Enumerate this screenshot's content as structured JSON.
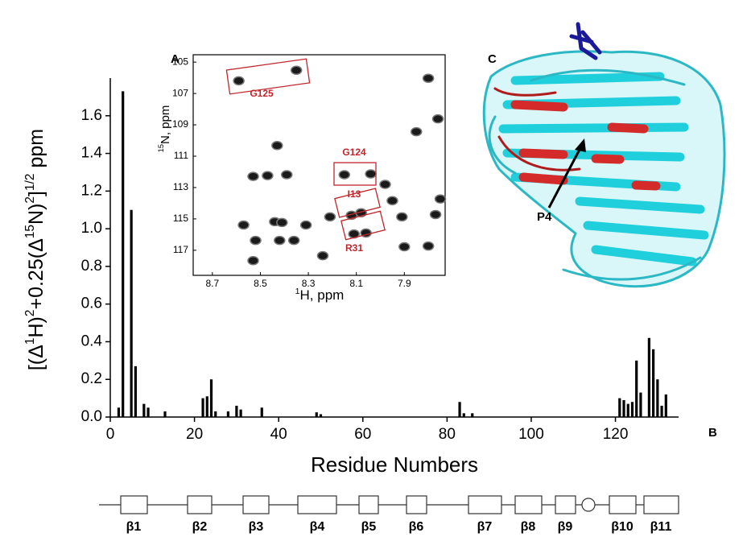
{
  "chart_data": [
    {
      "type": "bar",
      "panel": "B",
      "x_label": "Residue Numbers",
      "y_label_parts": [
        "[(Δ",
        "1",
        "H)",
        "2",
        "+0.25(Δ",
        "15",
        "N)",
        "2",
        "]",
        "1/2",
        " ppm"
      ],
      "x": [
        2,
        3,
        5,
        6,
        8,
        9,
        13,
        22,
        23,
        24,
        25,
        28,
        30,
        31,
        36,
        49,
        50,
        83,
        84,
        86,
        121,
        122,
        123,
        124,
        125,
        126,
        128,
        129,
        130,
        131,
        132
      ],
      "values": [
        0.05,
        1.73,
        1.1,
        0.27,
        0.07,
        0.05,
        0.03,
        0.1,
        0.11,
        0.2,
        0.03,
        0.03,
        0.06,
        0.04,
        0.05,
        0.025,
        0.015,
        0.08,
        0.02,
        0.02,
        0.1,
        0.09,
        0.07,
        0.08,
        0.3,
        0.13,
        0.42,
        0.36,
        0.2,
        0.06,
        0.12
      ],
      "color": "#000000",
      "xlim": [
        0,
        135
      ],
      "ylim": [
        0,
        1.8
      ],
      "xticks": [
        0,
        20,
        40,
        60,
        80,
        100,
        120
      ],
      "yticks": [
        {
          "value": 0,
          "label": "0.0"
        },
        0.2,
        0.4,
        0.6,
        0.8,
        {
          "value": 1,
          "label": "1.0"
        },
        1.2,
        1.4,
        1.6
      ],
      "secondary_structure": [
        "β1",
        "β2",
        "β3",
        "β4",
        "β5",
        "β6",
        "β7",
        "β8",
        "β9",
        "β10",
        "β11"
      ]
    },
    {
      "type": "scatter",
      "panel": "A",
      "x_label_parts": [
        "1",
        "H, ppm"
      ],
      "y_label_parts": [
        "15",
        "N, ppm"
      ],
      "x": [
        8.59,
        8.35,
        7.8,
        7.85,
        7.76,
        8.43,
        8.53,
        8.47,
        8.39,
        8.15,
        8.04,
        7.98,
        7.95,
        7.75,
        8.57,
        8.44,
        8.41,
        8.31,
        8.21,
        8.12,
        8.08,
        7.91,
        7.77,
        8.52,
        8.42,
        8.36,
        8.11,
        8.06,
        7.9,
        7.8,
        8.24,
        8.53
      ],
      "values": [
        106.19,
        105.52,
        106.03,
        109.44,
        108.62,
        110.32,
        112.29,
        112.24,
        112.18,
        112.18,
        112.13,
        112.8,
        113.84,
        113.73,
        115.39,
        115.18,
        115.23,
        115.39,
        114.87,
        114.77,
        114.61,
        114.87,
        114.72,
        116.37,
        116.37,
        116.37,
        115.96,
        115.9,
        116.78,
        116.73,
        117.35,
        117.66
      ],
      "color": "#1a1a1a",
      "xlim": [
        8.78,
        7.73
      ],
      "ylim": [
        118.6,
        104.53
      ],
      "xticks": [
        8.7,
        8.5,
        8.3,
        8.1,
        7.9
      ],
      "yticks": [
        105,
        107,
        109,
        111,
        113,
        115,
        117
      ],
      "annotations": [
        "G125",
        "G124",
        "I13",
        "R31"
      ]
    }
  ],
  "panel_c": {
    "label": "C",
    "annotation": "P4"
  }
}
